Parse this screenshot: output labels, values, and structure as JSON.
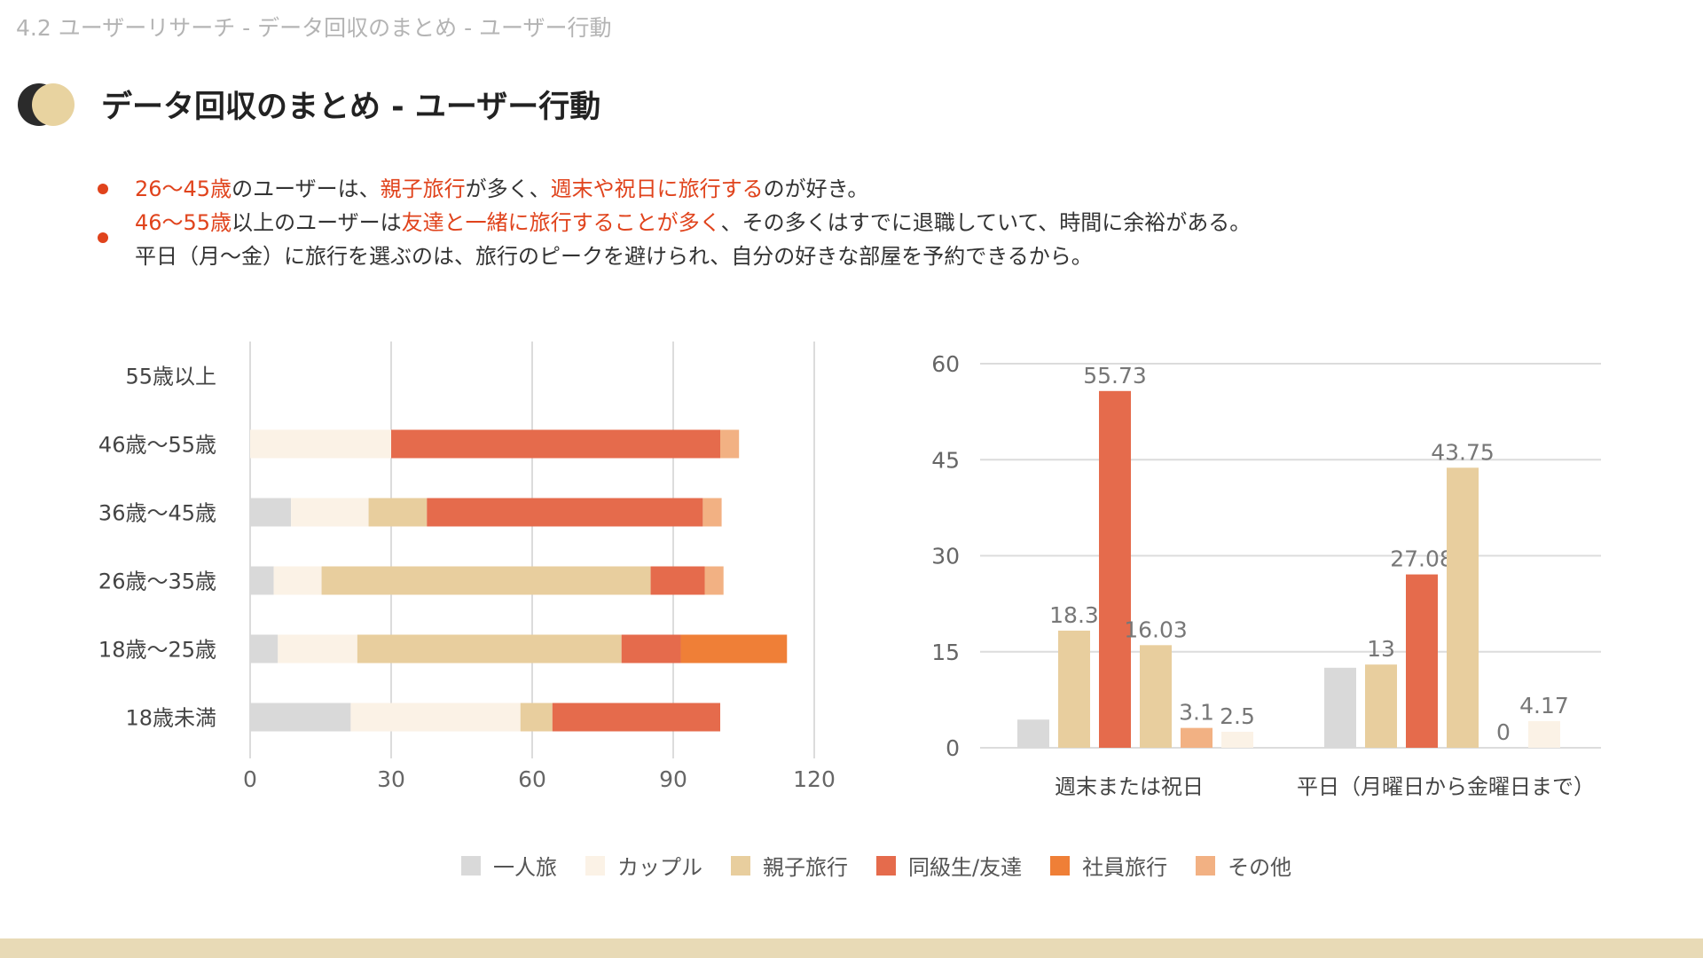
{
  "breadcrumb": "4.2 ユーザーリサーチ - データ回収のまとめ - ユーザー行動",
  "page_title": "データ回収のまとめ - ユーザー行動",
  "bullets": {
    "b1": {
      "p1": "26〜45歳",
      "p2": "のユーザーは、",
      "p3": "親子旅行",
      "p4": "が多く、",
      "p5": "週末や祝日に旅行する",
      "p6": "のが好き。"
    },
    "b2": {
      "p1": "46〜55歳",
      "p2": "以上のユーザーは",
      "p3": "友達と一緒に旅行することが多く",
      "p4": "、その多くはすでに退職していて、時間に余裕がある。",
      "line2": "平日（月〜金）に旅行を選ぶのは、旅行のピークを避けられ、自分の好きな部屋を予約できるから。"
    }
  },
  "colors": {
    "accent": "#e0431c",
    "series": [
      "#d9d9d9",
      "#fbf2e6",
      "#e8ce9e",
      "#e56b4c",
      "#ef7f37",
      "#f2b183"
    ]
  },
  "chart_data": [
    {
      "type": "bar",
      "orientation": "horizontal",
      "stacked": true,
      "categories": [
        "55歳以上",
        "46歳〜55歳",
        "36歳〜45歳",
        "26歳〜35歳",
        "18歳〜25歳",
        "18歳未満"
      ],
      "xlim": [
        0,
        120
      ],
      "xticks": [
        "0",
        "30",
        "60",
        "90",
        "120"
      ],
      "grid": true,
      "series": [
        {
          "name": "一人旅",
          "values": [
            0,
            0,
            8.7,
            5,
            5.9,
            21.4
          ]
        },
        {
          "name": "カップル",
          "values": [
            0,
            30,
            16.5,
            10.2,
            16.9,
            36.1
          ]
        },
        {
          "name": "親子旅行",
          "values": [
            0,
            0,
            12.4,
            70,
            56.2,
            6.8
          ]
        },
        {
          "name": "同級生/友達",
          "values": [
            0,
            70,
            58.7,
            11.5,
            12.6,
            35.7
          ]
        },
        {
          "name": "社員旅行",
          "values": [
            0,
            0,
            0,
            0,
            22.6,
            0
          ]
        },
        {
          "name": "その他",
          "values": [
            0,
            4,
            4,
            4,
            0,
            0
          ]
        }
      ]
    },
    {
      "type": "bar",
      "categories": [
        "週末または祝日",
        "平日（月曜日から金曜日まで）"
      ],
      "ylim": [
        0,
        60
      ],
      "yticks": [
        "0",
        "15",
        "30",
        "45",
        "60"
      ],
      "grid": true,
      "series": [
        {
          "name": "一人旅",
          "values": [
            4.4,
            12.5
          ],
          "labels": [
            "",
            ""
          ]
        },
        {
          "name": "親子旅行",
          "values": [
            18.3,
            13
          ],
          "labels": [
            "18.3",
            "13"
          ]
        },
        {
          "name": "同級生/友達",
          "values": [
            55.73,
            27.08
          ],
          "labels": [
            "55.73",
            "27.08"
          ]
        },
        {
          "name": "親子旅行",
          "values": [
            16.03,
            43.75
          ],
          "labels": [
            "16.03",
            "43.75"
          ]
        },
        {
          "name": "その他",
          "values": [
            3.1,
            0
          ],
          "labels": [
            "3.1",
            "0"
          ]
        },
        {
          "name": "カップル",
          "values": [
            2.5,
            4.17
          ],
          "labels": [
            "2.5",
            "4.17"
          ]
        }
      ]
    }
  ],
  "legend": [
    {
      "label": "一人旅",
      "color": "#d9d9d9"
    },
    {
      "label": "カップル",
      "color": "#fbf2e6"
    },
    {
      "label": "親子旅行",
      "color": "#e8ce9e"
    },
    {
      "label": "同級生/友達",
      "color": "#e56b4c"
    },
    {
      "label": "社員旅行",
      "color": "#ef7f37"
    },
    {
      "label": "その他",
      "color": "#f2b183"
    }
  ]
}
